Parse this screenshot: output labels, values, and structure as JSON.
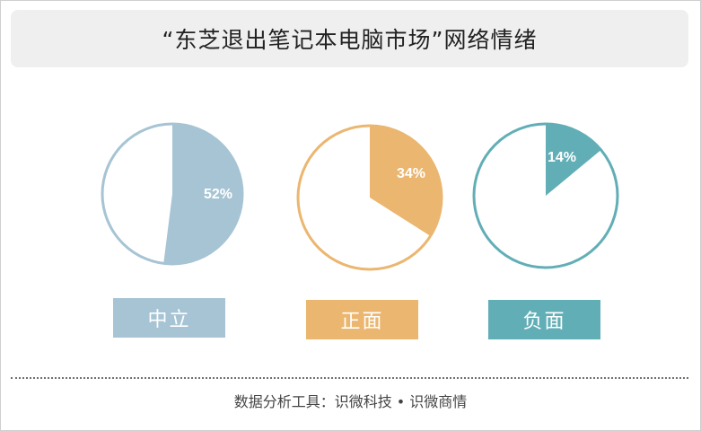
{
  "header": {
    "title": "“东芝退出笔记本电脑市场”网络情绪"
  },
  "chart_data": {
    "type": "pie",
    "charts": [
      {
        "category": "中立",
        "value": 52,
        "value_label": "52%",
        "color": "#a6c4d4"
      },
      {
        "category": "正面",
        "value": 34,
        "value_label": "34%",
        "color": "#ebb66f"
      },
      {
        "category": "负面",
        "value": 14,
        "value_label": "14%",
        "color": "#62aeb6"
      }
    ]
  },
  "footer": {
    "source": "数据分析工具：识微科技 • 识微商情"
  }
}
